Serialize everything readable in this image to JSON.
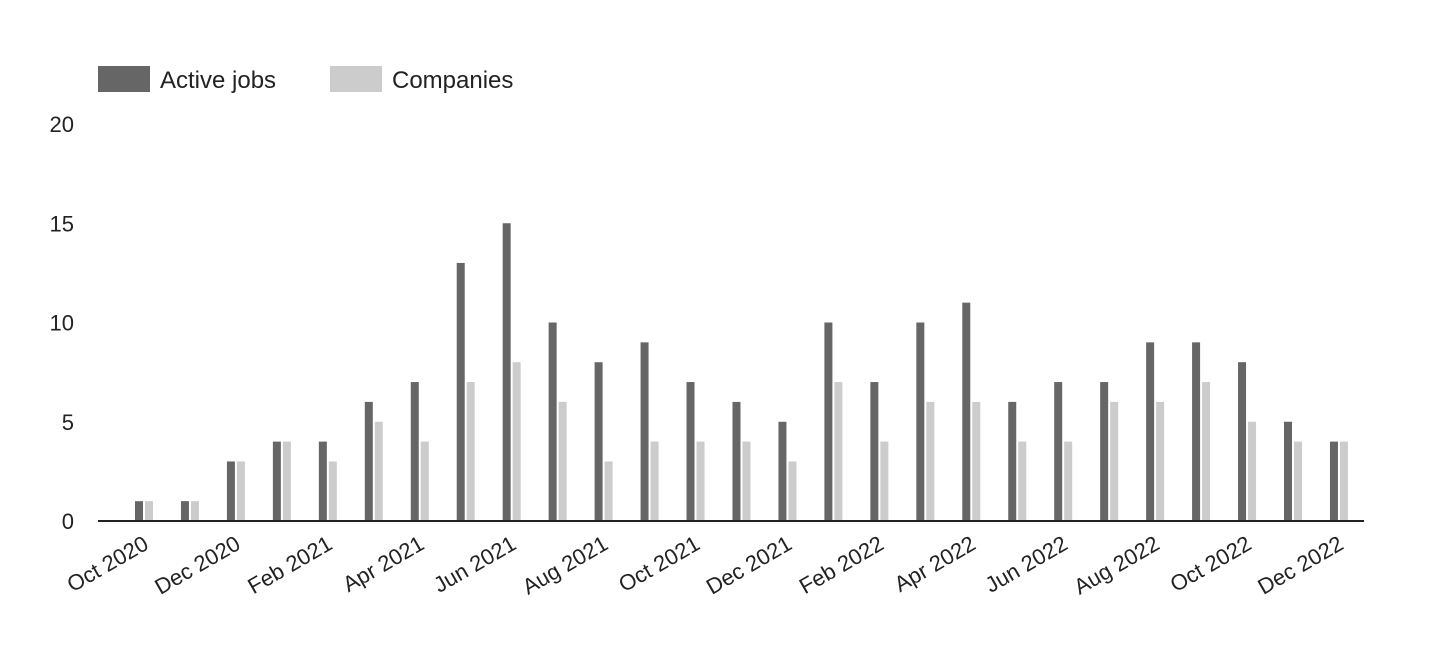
{
  "chart_data": {
    "type": "bar",
    "title": "",
    "xlabel": "",
    "ylabel": "",
    "ylim": [
      0,
      20
    ],
    "yticks": [
      "0",
      "5",
      "10",
      "15",
      "20"
    ],
    "grid": false,
    "legend_position": "top-left",
    "categories": [
      "Oct 2020",
      "Nov 2020",
      "Dec 2020",
      "Jan 2021",
      "Feb 2021",
      "Mar 2021",
      "Apr 2021",
      "May 2021",
      "Jun 2021",
      "Jul 2021",
      "Aug 2021",
      "Sep 2021",
      "Oct 2021",
      "Nov 2021",
      "Dec 2021",
      "Jan 2022",
      "Feb 2022",
      "Mar 2022",
      "Apr 2022",
      "May 2022",
      "Jun 2022",
      "Jul 2022",
      "Aug 2022",
      "Sep 2022",
      "Oct 2022",
      "Nov 2022",
      "Dec 2022"
    ],
    "shown_tick_labels": [
      "Oct 2020",
      "Dec 2020",
      "Feb 2021",
      "Apr 2021",
      "Jun 2021",
      "Aug 2021",
      "Oct 2021",
      "Dec 2021",
      "Feb 2022",
      "Apr 2022",
      "Jun 2022",
      "Aug 2022",
      "Oct 2022",
      "Dec 2022"
    ],
    "series": [
      {
        "name": "Active jobs",
        "color": "#666666",
        "values": [
          1,
          1,
          3,
          4,
          4,
          6,
          7,
          13,
          15,
          10,
          8,
          9,
          7,
          6,
          5,
          10,
          7,
          10,
          11,
          6,
          7,
          7,
          9,
          9,
          8,
          5,
          4
        ]
      },
      {
        "name": "Companies",
        "color": "#cccccc",
        "values": [
          1,
          1,
          3,
          4,
          3,
          5,
          4,
          7,
          8,
          6,
          3,
          4,
          4,
          4,
          3,
          7,
          4,
          6,
          6,
          4,
          4,
          6,
          6,
          7,
          5,
          4,
          4
        ]
      }
    ]
  }
}
